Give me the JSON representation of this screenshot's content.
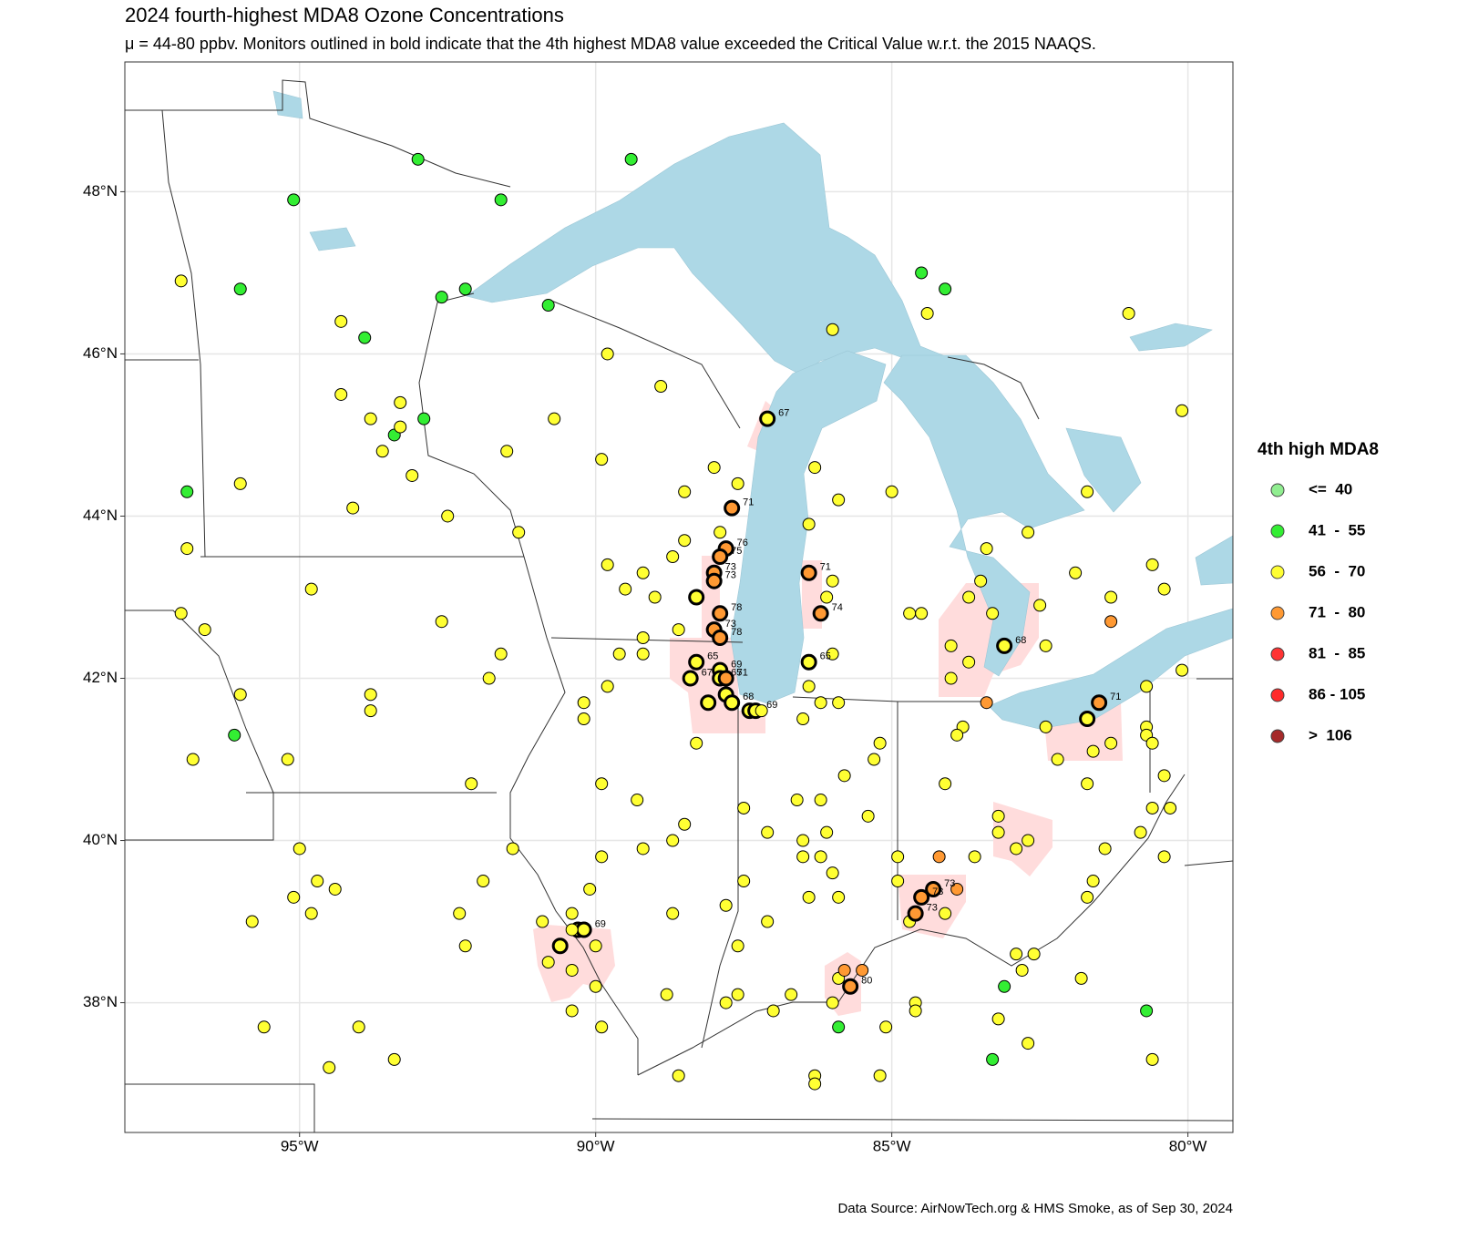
{
  "chart_data": {
    "type": "map",
    "title": "2024 fourth-highest MDA8 Ozone Concentrations",
    "subtitle": "μ = 44-80 ppbv. Monitors outlined in bold indicate that the 4th highest MDA8 value exceeded the Critical Value w.r.t. the 2015 NAAQS.",
    "caption": "Data Source: AirNowTech.org & HMS Smoke, as of Sep 30, 2024",
    "xlim": [
      -97.95,
      -79.24
    ],
    "ylim": [
      36.4,
      49.6
    ],
    "xticks": [
      {
        "value": -95,
        "label": "95°W"
      },
      {
        "value": -90,
        "label": "90°W"
      },
      {
        "value": -85,
        "label": "85°W"
      },
      {
        "value": -80,
        "label": "80°W"
      }
    ],
    "yticks": [
      {
        "value": 38,
        "label": "38°N"
      },
      {
        "value": 40,
        "label": "40°N"
      },
      {
        "value": 42,
        "label": "42°N"
      },
      {
        "value": 44,
        "label": "44°N"
      },
      {
        "value": 46,
        "label": "46°N"
      },
      {
        "value": 48,
        "label": "48°N"
      }
    ],
    "grid": true,
    "legend": {
      "title": "4th high MDA8",
      "position": "right"
    },
    "series": [
      {
        "name": "<=  40",
        "color": "#90ee90",
        "x": [],
        "y": [],
        "bold": []
      },
      {
        "name": "41  -  55",
        "color": "#33ee33",
        "x": [
          -95.1,
          -93.0,
          -91.6,
          -89.4,
          -96.0,
          -92.6,
          -92.2,
          -90.8,
          -93.9,
          -92.9,
          -93.4,
          -96.9,
          -96.1,
          -84.5,
          -84.1,
          -83.1,
          -85.9,
          -80.7,
          -83.3
        ],
        "y": [
          47.9,
          48.4,
          47.9,
          48.4,
          46.8,
          46.7,
          46.8,
          46.6,
          46.2,
          45.2,
          45.0,
          44.3,
          41.3,
          47.0,
          46.8,
          38.2,
          37.7,
          37.9,
          37.3
        ],
        "bold": [
          false,
          false,
          false,
          false,
          false,
          false,
          false,
          false,
          false,
          false,
          false,
          false,
          false,
          false,
          false,
          false,
          false,
          false,
          false
        ]
      },
      {
        "name": "56  -  70",
        "color": "#ffff33",
        "x": [
          -87.1,
          -88.3,
          -88.3,
          -88.4,
          -87.9,
          -87.9,
          -87.8,
          -87.7,
          -88.1,
          -87.4,
          -87.3,
          -86.4,
          -83.1,
          -81.7,
          -90.6,
          -90.3,
          -90.2,
          -97.0,
          -94.3,
          -94.3,
          -93.8,
          -93.3,
          -93.3,
          -93.6,
          -93.1,
          -92.5,
          -94.1,
          -96.0,
          -96.9,
          -97.0,
          -96.6,
          -94.8,
          -92.6,
          -91.6,
          -91.8,
          -93.8,
          -93.8,
          -96.0,
          -96.8,
          -95.2,
          -92.1,
          -95.0,
          -94.7,
          -94.4,
          -95.1,
          -94.8,
          -95.8,
          -91.9,
          -91.4,
          -92.3,
          -92.2,
          -94.0,
          -95.6,
          -94.5,
          -93.4,
          -89.8,
          -90.7,
          -91.5,
          -89.9,
          -91.3,
          -89.8,
          -89.5,
          -89.2,
          -89.0,
          -88.6,
          -89.2,
          -89.2,
          -88.9,
          -88.5,
          -88.7,
          -88.5,
          -89.6,
          -89.8,
          -90.2,
          -90.2,
          -89.9,
          -89.3,
          -88.5,
          -88.7,
          -89.2,
          -89.9,
          -90.1,
          -88.7,
          -90.0,
          -89.9,
          -88.8,
          -88.6,
          -88.0,
          -87.6,
          -87.9,
          -86.3,
          -86.4,
          -85.9,
          -86.0,
          -85.0,
          -82.7,
          -81.7,
          -83.4,
          -83.5,
          -83.7,
          -84.7,
          -84.5,
          -83.3,
          -84.0,
          -83.7,
          -84.0,
          -82.4,
          -81.9,
          -81.3,
          -80.6,
          -80.4,
          -82.5,
          -81.0,
          -80.1,
          -80.1,
          -80.7,
          -84.4,
          -86.0,
          -86.1,
          -86.0,
          -86.4,
          -86.2,
          -85.9,
          -86.5,
          -87.2,
          -88.3,
          -83.8,
          -83.9,
          -82.4,
          -82.2,
          -81.6,
          -81.3,
          -80.7,
          -80.7,
          -80.6,
          -81.7,
          -80.6,
          -80.4,
          -80.3,
          -80.8,
          -80.4,
          -81.4,
          -83.2,
          -83.2,
          -82.9,
          -82.7,
          -83.6,
          -84.1,
          -85.2,
          -85.3,
          -85.8,
          -85.4,
          -86.2,
          -86.6,
          -86.1,
          -86.5,
          -86.5,
          -86.2,
          -86.0,
          -86.4,
          -85.9,
          -84.9,
          -84.9,
          -84.7,
          -84.1,
          -87.1,
          -87.5,
          -87.8,
          -87.6,
          -87.1,
          -87.5,
          -87.8,
          -87.6,
          -87.0,
          -86.7,
          -85.9,
          -86.0,
          -85.1,
          -84.6,
          -84.6,
          -85.2,
          -86.3,
          -86.3,
          -83.2,
          -82.7,
          -82.9,
          -82.6,
          -82.8,
          -81.8,
          -80.6,
          -81.7,
          -81.6,
          -90.4,
          -90.4,
          -90.8,
          -90.4,
          -90.0,
          -90.4,
          -90.9
        ],
        "y": [
          45.2,
          43.0,
          42.2,
          42.0,
          42.1,
          42.0,
          41.8,
          41.7,
          41.7,
          41.6,
          41.6,
          42.2,
          42.4,
          41.5,
          38.7,
          38.9,
          38.9,
          46.9,
          46.4,
          45.5,
          45.2,
          45.4,
          45.1,
          44.8,
          44.5,
          44.0,
          44.1,
          44.4,
          43.6,
          42.8,
          42.6,
          43.1,
          42.7,
          42.3,
          42.0,
          41.8,
          41.6,
          41.8,
          41.0,
          41.0,
          40.7,
          39.9,
          39.5,
          39.4,
          39.3,
          39.1,
          39.0,
          39.5,
          39.9,
          39.1,
          38.7,
          37.7,
          37.7,
          37.2,
          37.3,
          46.0,
          45.2,
          44.8,
          44.7,
          43.8,
          43.4,
          43.1,
          43.3,
          43.0,
          42.6,
          42.5,
          42.3,
          45.6,
          44.3,
          43.5,
          43.7,
          42.3,
          41.9,
          41.7,
          41.5,
          40.7,
          40.5,
          40.2,
          40.0,
          39.9,
          39.8,
          39.4,
          39.1,
          38.2,
          37.7,
          38.1,
          37.1,
          44.6,
          44.4,
          43.8,
          44.6,
          43.9,
          44.2,
          46.3,
          44.3,
          43.8,
          44.3,
          43.6,
          43.2,
          43.0,
          42.8,
          42.8,
          42.8,
          42.4,
          42.2,
          42.0,
          42.4,
          43.3,
          43.0,
          43.4,
          43.1,
          42.9,
          46.5,
          45.3,
          42.1,
          41.9,
          46.5,
          43.2,
          43.0,
          42.3,
          41.9,
          41.7,
          41.7,
          41.5,
          41.6,
          41.2,
          41.4,
          41.3,
          41.4,
          41.0,
          41.1,
          41.2,
          41.4,
          41.3,
          41.2,
          40.7,
          40.4,
          40.8,
          40.4,
          40.1,
          39.8,
          39.9,
          40.3,
          40.1,
          39.9,
          40.0,
          39.8,
          40.7,
          41.2,
          41.0,
          40.8,
          40.3,
          40.5,
          40.5,
          40.1,
          40.0,
          39.8,
          39.8,
          39.6,
          39.3,
          39.3,
          39.8,
          39.5,
          39.0,
          39.1,
          39.0,
          39.5,
          39.2,
          38.7,
          40.1,
          40.4,
          38.0,
          38.1,
          37.9,
          38.1,
          38.3,
          38.0,
          37.7,
          38.0,
          37.9,
          37.1,
          37.1,
          37.0,
          37.8,
          37.5,
          38.6,
          38.6,
          38.4,
          38.3,
          37.3,
          39.3,
          39.5,
          39.1,
          38.9,
          38.5,
          38.4,
          38.7,
          37.9,
          39.0
        ],
        "bold": [
          true,
          true,
          true,
          true,
          true,
          true,
          true,
          true,
          true,
          true,
          true,
          true,
          true,
          true,
          true,
          true,
          true,
          false,
          false,
          false,
          false,
          false,
          false,
          false,
          false,
          false,
          false,
          false,
          false,
          false,
          false,
          false,
          false,
          false,
          false,
          false,
          false,
          false,
          false,
          false,
          false,
          false,
          false,
          false,
          false,
          false,
          false,
          false,
          false,
          false,
          false,
          false,
          false,
          false,
          false,
          false,
          false,
          false,
          false,
          false,
          false,
          false,
          false,
          false,
          false,
          false,
          false,
          false,
          false,
          false,
          false,
          false,
          false,
          false,
          false,
          false,
          false,
          false,
          false,
          false,
          false,
          false,
          false,
          false,
          false,
          false,
          false,
          false,
          false,
          false,
          false,
          false,
          false,
          false,
          false,
          false,
          false,
          false,
          false,
          false,
          false,
          false,
          false,
          false,
          false,
          false,
          false,
          false,
          false,
          false,
          false,
          false,
          false,
          false,
          false,
          false,
          false,
          false,
          false,
          false,
          false,
          false,
          false,
          false,
          false,
          false,
          false,
          false,
          false,
          false,
          false,
          false,
          false,
          false,
          false,
          false,
          false,
          false,
          false,
          false,
          false,
          false,
          false,
          false,
          false,
          false,
          false,
          false,
          false,
          false,
          false,
          false,
          false,
          false,
          false,
          false,
          false,
          false,
          false,
          false,
          false,
          false,
          false,
          false,
          false,
          false,
          false,
          false,
          false,
          false,
          false,
          false,
          false,
          false,
          false,
          false,
          false,
          false,
          false,
          false,
          false,
          false,
          false,
          false,
          false,
          false,
          false,
          false,
          false,
          false,
          false,
          false,
          false,
          false,
          false,
          false,
          false,
          false,
          false
        ]
      },
      {
        "name": "71  -  80",
        "color": "#ff9933",
        "x": [
          -87.7,
          -87.8,
          -87.9,
          -88.0,
          -88.0,
          -87.9,
          -88.0,
          -87.9,
          -86.4,
          -86.2,
          -87.8,
          -83.4,
          -81.3,
          -81.5,
          -84.3,
          -84.5,
          -84.6,
          -84.2,
          -83.9,
          -85.7,
          -85.8,
          -85.5
        ],
        "y": [
          44.1,
          43.6,
          43.5,
          43.3,
          43.2,
          42.8,
          42.6,
          42.5,
          43.3,
          42.8,
          42.0,
          41.7,
          42.7,
          41.7,
          39.4,
          39.3,
          39.1,
          39.8,
          39.4,
          38.2,
          38.4,
          38.4
        ],
        "bold": [
          true,
          true,
          true,
          true,
          true,
          true,
          true,
          true,
          true,
          true,
          true,
          false,
          false,
          true,
          true,
          true,
          true,
          false,
          false,
          true,
          false,
          false
        ]
      },
      {
        "name": "81  -  85",
        "color": "#ff3333",
        "x": [],
        "y": [],
        "bold": []
      },
      {
        "name": "86 - 105",
        "color": "#ff2a2a",
        "x": [],
        "y": [],
        "bold": []
      },
      {
        "name": ">  106",
        "color": "#a52a2a",
        "x": [],
        "y": [],
        "bold": []
      }
    ],
    "labels": [
      {
        "x": -87.1,
        "y": 45.2,
        "text": 67
      },
      {
        "x": -87.7,
        "y": 44.1,
        "text": 71
      },
      {
        "x": -87.8,
        "y": 43.6,
        "text": 76
      },
      {
        "x": -87.9,
        "y": 43.5,
        "text": 75
      },
      {
        "x": -88.0,
        "y": 43.3,
        "text": 73
      },
      {
        "x": -88.0,
        "y": 43.2,
        "text": 73
      },
      {
        "x": -87.9,
        "y": 42.8,
        "text": 78
      },
      {
        "x": -88.0,
        "y": 42.6,
        "text": 73
      },
      {
        "x": -87.9,
        "y": 42.5,
        "text": 78
      },
      {
        "x": -86.4,
        "y": 43.3,
        "text": 71
      },
      {
        "x": -86.2,
        "y": 42.8,
        "text": 74
      },
      {
        "x": -86.4,
        "y": 42.2,
        "text": 65
      },
      {
        "x": -88.3,
        "y": 42.2,
        "text": 65
      },
      {
        "x": -88.4,
        "y": 42.0,
        "text": 67
      },
      {
        "x": -87.9,
        "y": 42.1,
        "text": 69
      },
      {
        "x": -87.8,
        "y": 42.0,
        "text": 71
      },
      {
        "x": -87.9,
        "y": 42.0,
        "text": 65
      },
      {
        "x": -87.7,
        "y": 41.7,
        "text": 68
      },
      {
        "x": -87.3,
        "y": 41.6,
        "text": 69
      },
      {
        "x": -83.1,
        "y": 42.4,
        "text": 68
      },
      {
        "x": -81.5,
        "y": 41.7,
        "text": 71
      },
      {
        "x": -84.3,
        "y": 39.4,
        "text": 73
      },
      {
        "x": -84.5,
        "y": 39.3,
        "text": 73
      },
      {
        "x": -84.6,
        "y": 39.1,
        "text": 73
      },
      {
        "x": -85.7,
        "y": 38.2,
        "text": 80
      },
      {
        "x": -90.2,
        "y": 38.9,
        "text": 69
      }
    ]
  }
}
